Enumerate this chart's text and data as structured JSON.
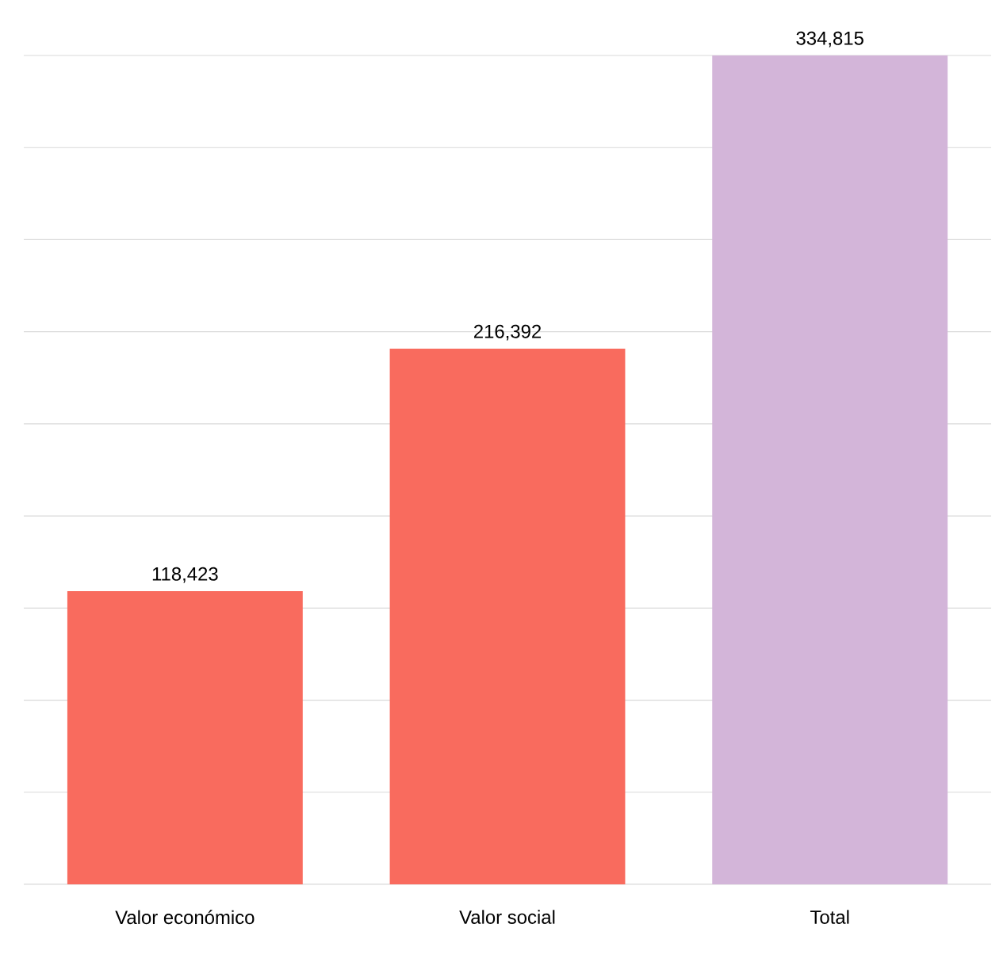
{
  "chart_data": {
    "type": "bar",
    "categories": [
      "Valor económico",
      "Valor social",
      "Total"
    ],
    "values": [
      118423,
      216392,
      334815
    ],
    "colors": [
      "#f96b5e",
      "#f96b5e",
      "#d3b5d9"
    ],
    "value_labels": [
      "118,423",
      "216,392",
      "334,815"
    ],
    "ylim": [
      0,
      334815
    ],
    "yticks": [
      {
        "value": 0,
        "label": null
      },
      {
        "value": 37200,
        "label": null
      },
      {
        "value": 74400,
        "label": null
      },
      {
        "value": 111600,
        "label": null
      },
      {
        "value": 148800,
        "label": null
      },
      {
        "value": 186000,
        "label": null
      },
      {
        "value": 223200,
        "label": null
      },
      {
        "value": 260400,
        "label": null
      },
      {
        "value": 297600,
        "label": null
      },
      {
        "value": 334800,
        "label": null
      }
    ],
    "tick_labels": "x",
    "grid": "y"
  }
}
